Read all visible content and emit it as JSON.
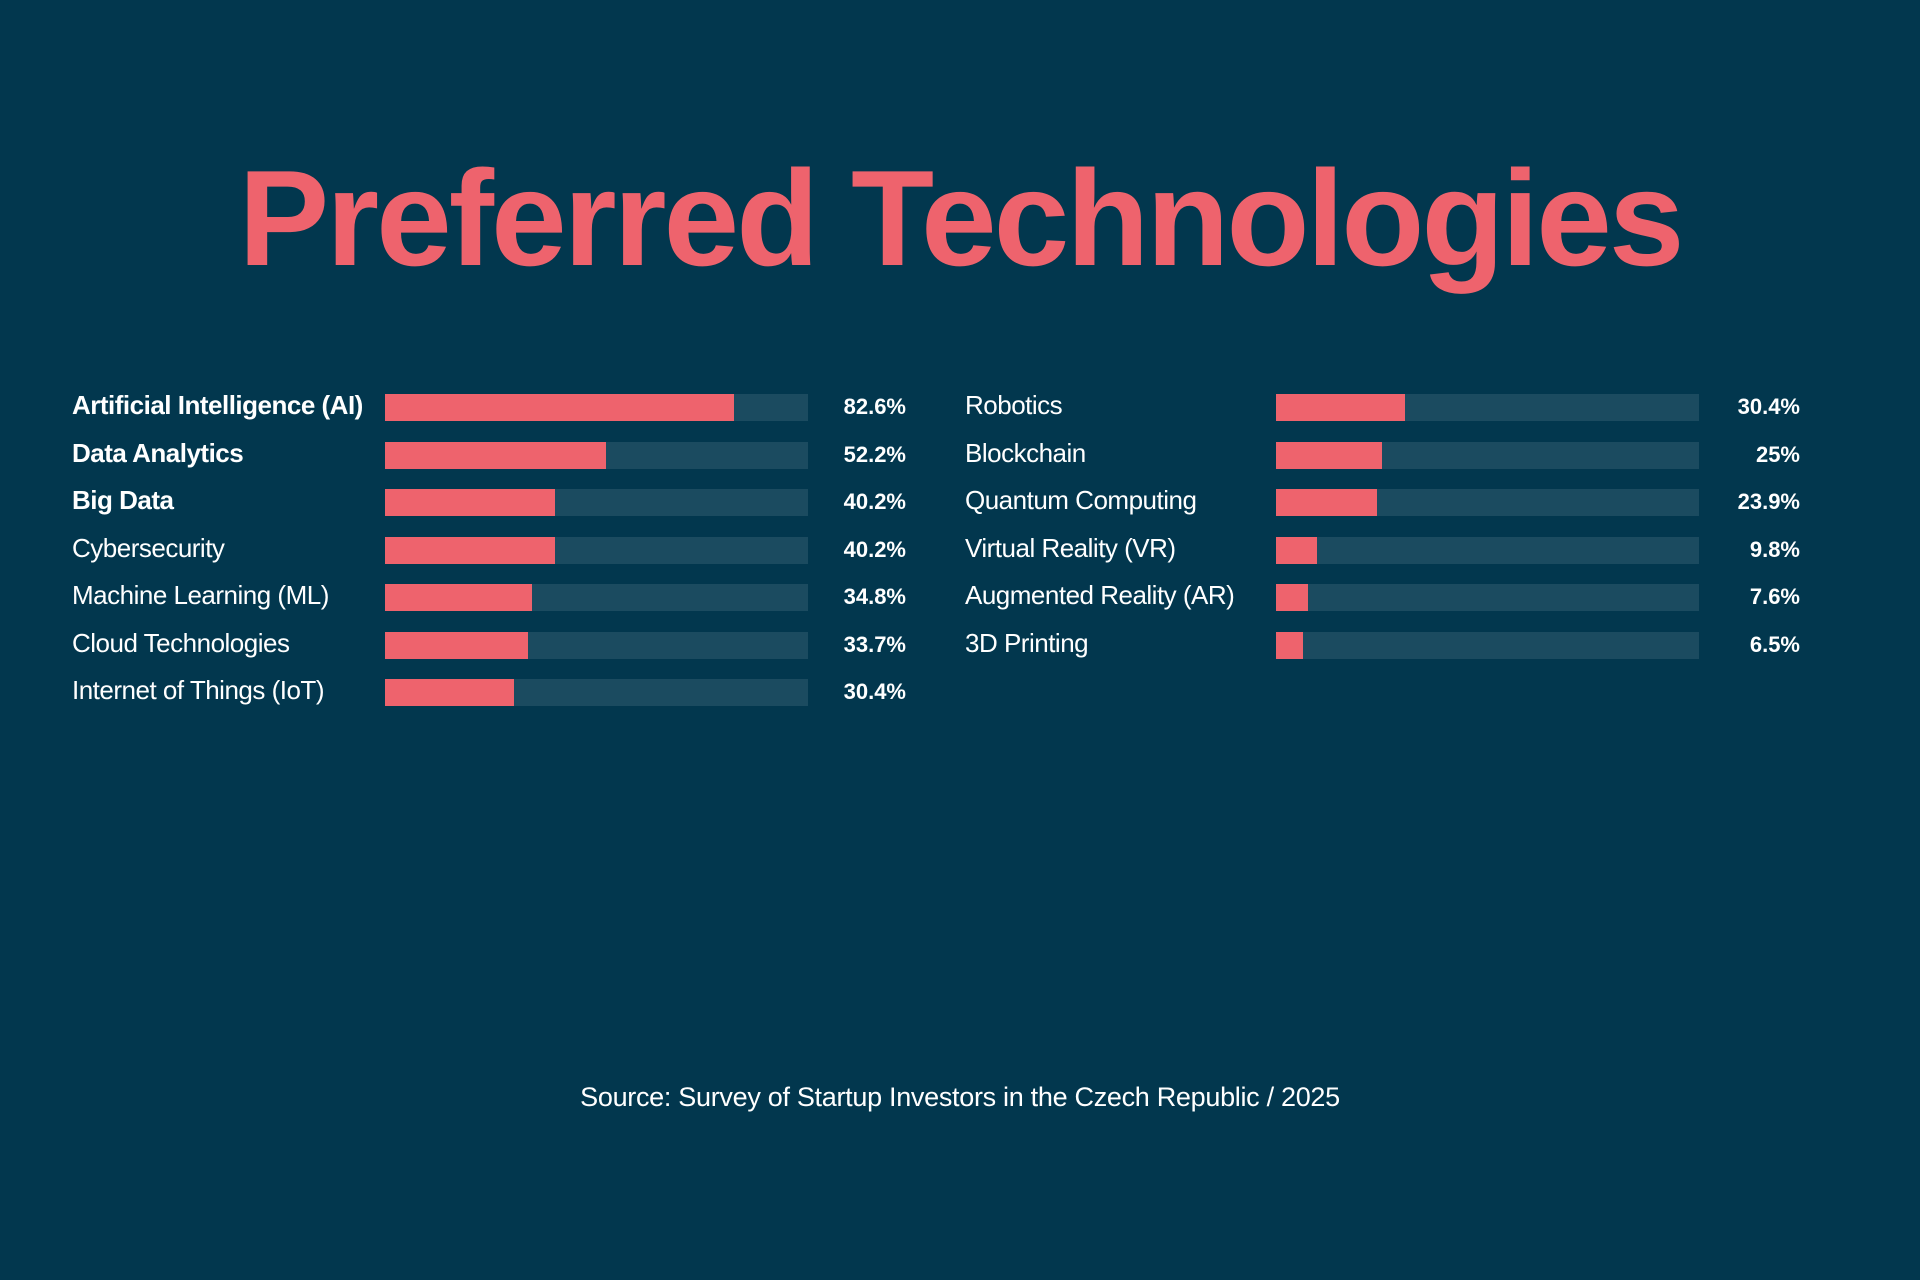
{
  "chart_data": {
    "type": "bar",
    "orientation": "horizontal",
    "title": "Preferred Technologies",
    "xlim": [
      0,
      100
    ],
    "colors": {
      "background": "#02374e",
      "bar": "#ee636d",
      "track": "#1b4b60",
      "title": "#ee636d"
    },
    "columns": [
      {
        "categories": [
          "Artificial Intelligence (AI)",
          "Data Analytics",
          "Big Data",
          "Cybersecurity",
          "Machine Learning (ML)",
          "Cloud Technologies",
          "Internet of Things (IoT)"
        ],
        "values": [
          82.6,
          52.2,
          40.2,
          40.2,
          34.8,
          33.7,
          30.4
        ],
        "value_labels": [
          "82.6%",
          "52.2%",
          "40.2%",
          "40.2%",
          "34.8%",
          "33.7%",
          "30.4%"
        ],
        "bold": [
          true,
          true,
          true,
          false,
          false,
          false,
          false
        ]
      },
      {
        "categories": [
          "Robotics",
          "Blockchain",
          "Quantum Computing",
          "Virtual Reality (VR)",
          "Augmented Reality (AR)",
          "3D Printing"
        ],
        "values": [
          30.4,
          25,
          23.9,
          9.8,
          7.6,
          6.5
        ],
        "value_labels": [
          "30.4%",
          "25%",
          "23.9%",
          "9.8%",
          "7.6%",
          "6.5%"
        ],
        "bold": [
          false,
          false,
          false,
          false,
          false,
          false
        ]
      }
    ],
    "source": "Source: Survey of Startup Investors in the Czech Republic / 2025"
  }
}
